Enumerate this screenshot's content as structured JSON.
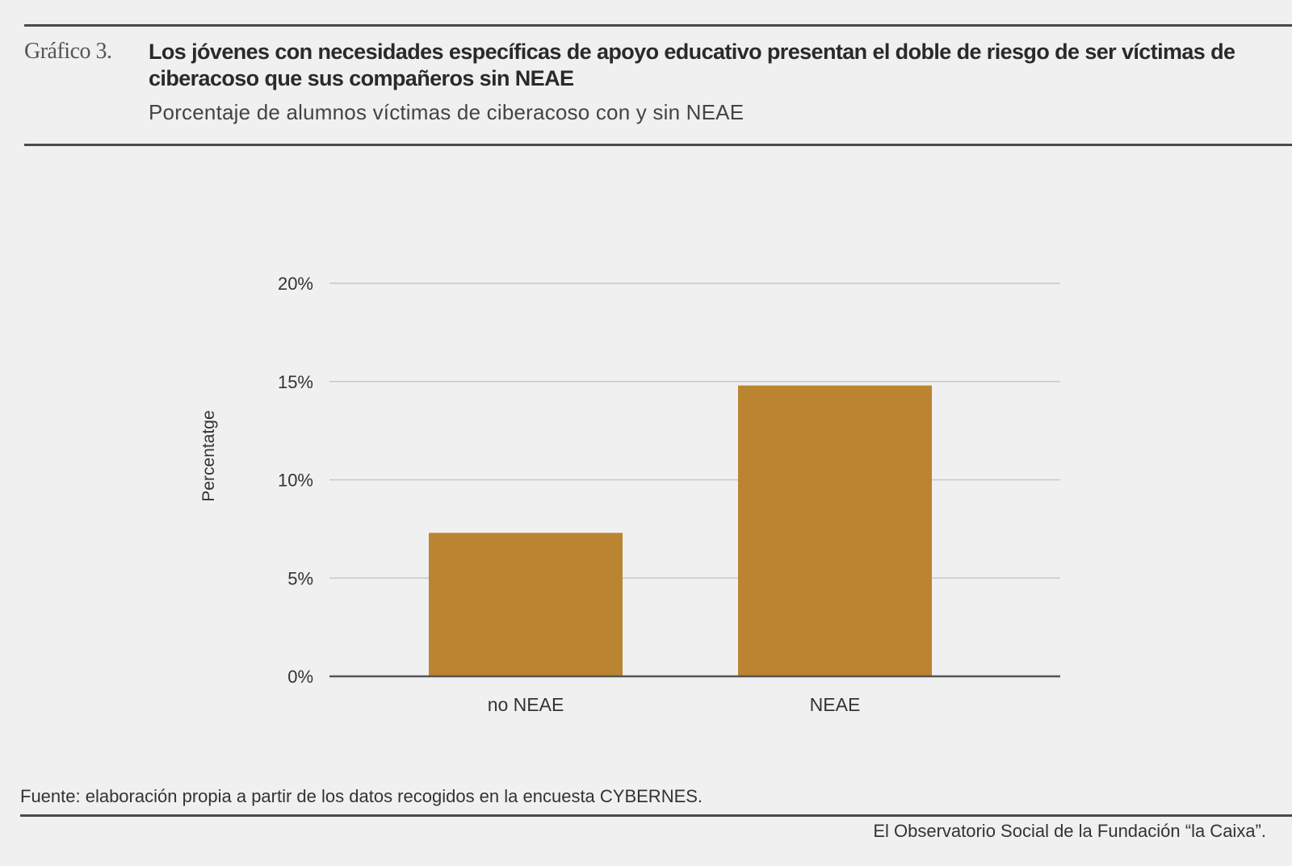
{
  "header": {
    "figure_label": "Gráfico 3.",
    "title": "Los jóvenes con necesidades específicas de apoyo educativo presentan el doble de riesgo de ser víctimas de ciberacoso que sus compañeros sin NEAE",
    "subtitle": "Porcentaje de alumnos víctimas de ciberacoso con y sin NEAE"
  },
  "chart_data": {
    "type": "bar",
    "categories": [
      "no NEAE",
      "NEAE"
    ],
    "values": [
      7.3,
      14.8
    ],
    "ylabel": "Percentatge",
    "xlabel": "",
    "ylim": [
      0,
      20
    ],
    "yticks": [
      0,
      5,
      10,
      15,
      20
    ],
    "ytick_labels": [
      "0%",
      "5%",
      "10%",
      "15%",
      "20%"
    ],
    "grid": true,
    "bar_color": "#bb8431"
  },
  "footer": {
    "source": "Fuente: elaboración propia a partir de los datos recogidos en la encuesta CYBERNES.",
    "credit": "El Observatorio Social de la Fundación “la Caixa”."
  },
  "colors": {
    "background": "#f0f0f0",
    "rule": "#4a4a4a",
    "grid": "#c8c8c8",
    "axis": "#555555",
    "bar": "#bb8431"
  }
}
